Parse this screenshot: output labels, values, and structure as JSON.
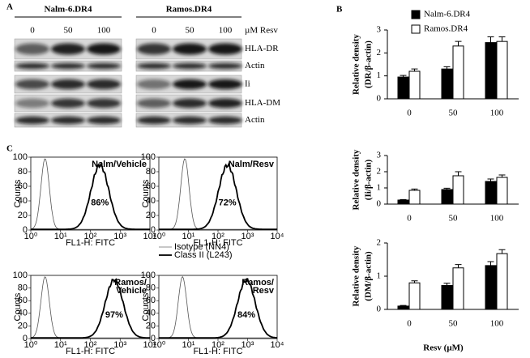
{
  "panel_a": {
    "label": "A",
    "groups": [
      {
        "name": "Nalm-6.DR4",
        "lanes": [
          "0",
          "50",
          "100"
        ]
      },
      {
        "name": "Ramos.DR4",
        "lanes": [
          "0",
          "50",
          "100"
        ]
      }
    ],
    "unit": "µM Resv",
    "rows": [
      "HLA-DR",
      "Actin",
      "Ii",
      "HLA-DM",
      "Actin"
    ]
  },
  "panel_b": {
    "label": "B",
    "xlabel": "Resv (µM)"
  },
  "chart_data": [
    {
      "type": "bar",
      "ylabel": [
        "Relative density",
        "(DR/β-actin)"
      ],
      "categories": [
        "0",
        "50",
        "100"
      ],
      "ylim": [
        0,
        3
      ],
      "yticks": [
        0,
        1,
        2,
        3
      ],
      "series": [
        {
          "name": "Nalm-6.DR4",
          "color": "#000000",
          "values": [
            0.95,
            1.3,
            2.45
          ],
          "errors": [
            0.07,
            0.1,
            0.25
          ]
        },
        {
          "name": "Ramos.DR4",
          "color": "#ffffff",
          "values": [
            1.2,
            2.3,
            2.5
          ],
          "errors": [
            0.1,
            0.2,
            0.2
          ]
        }
      ]
    },
    {
      "type": "bar",
      "ylabel": [
        "Relative density",
        "(Ii/β-actin)"
      ],
      "categories": [
        "0",
        "50",
        "100"
      ],
      "ylim": [
        0,
        3
      ],
      "yticks": [
        0,
        1,
        2,
        3
      ],
      "series": [
        {
          "color": "#000000",
          "values": [
            0.25,
            0.9,
            1.4
          ],
          "errors": [
            0.03,
            0.08,
            0.15
          ]
        },
        {
          "color": "#ffffff",
          "values": [
            0.85,
            1.75,
            1.65
          ],
          "errors": [
            0.08,
            0.25,
            0.15
          ]
        }
      ]
    },
    {
      "type": "bar",
      "ylabel": [
        "Relative density",
        "(DM/β-actin)"
      ],
      "categories": [
        "0",
        "50",
        "100"
      ],
      "ylim": [
        0,
        2
      ],
      "yticks": [
        0,
        1,
        2
      ],
      "series": [
        {
          "color": "#000000",
          "values": [
            0.1,
            0.72,
            1.32
          ],
          "errors": [
            0.02,
            0.07,
            0.12
          ]
        },
        {
          "color": "#ffffff",
          "values": [
            0.8,
            1.25,
            1.68
          ],
          "errors": [
            0.06,
            0.1,
            0.12
          ]
        }
      ]
    }
  ],
  "panel_c": {
    "label": "C",
    "ylabel": "Counts",
    "xlabel": "FL1-H: FITC",
    "yticks": [
      "0",
      "20",
      "40",
      "60",
      "80",
      "100"
    ],
    "xticks": [
      "10⁰",
      "10¹",
      "10²",
      "10³",
      "10⁴"
    ],
    "legend": [
      "Isotype (NN4)",
      "Class II (L243)"
    ],
    "plots": [
      {
        "title": [
          "Nalm/Vehicle"
        ],
        "percent": "86%"
      },
      {
        "title": [
          "Nalm/Resv"
        ],
        "percent": "72%"
      },
      {
        "title": [
          "Ramos/",
          "Vehicle"
        ],
        "percent": "97%"
      },
      {
        "title": [
          "Ramos/",
          "Resv"
        ],
        "percent": "84%"
      }
    ]
  }
}
